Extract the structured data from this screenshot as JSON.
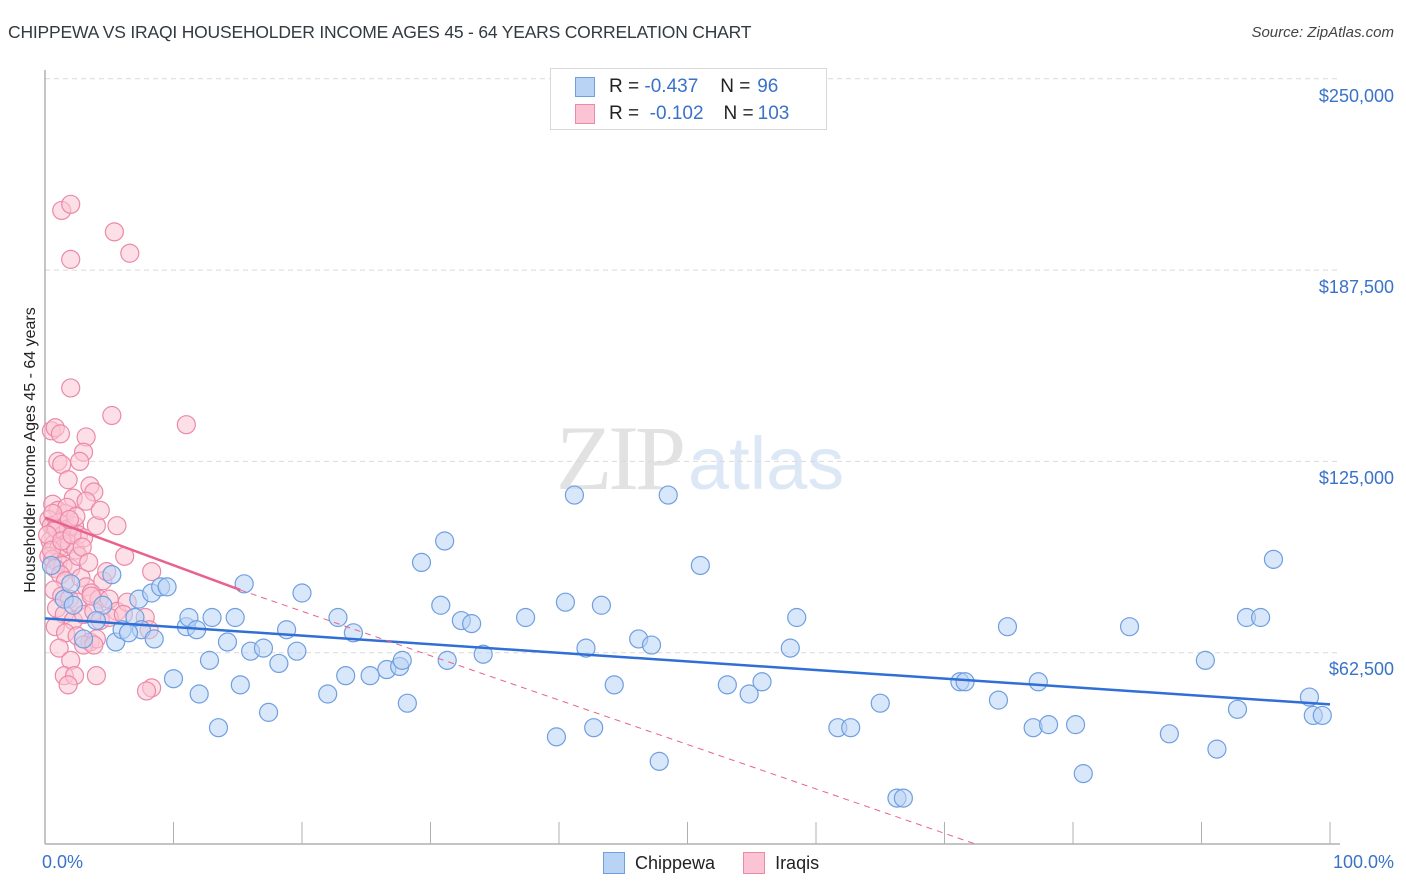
{
  "header": {
    "title": "CHIPPEWA VS IRAQI HOUSEHOLDER INCOME AGES 45 - 64 YEARS CORRELATION CHART",
    "source": "Source: ZipAtlas.com"
  },
  "watermark": {
    "zip": "ZIP",
    "atlas": "atlas"
  },
  "legend": {
    "series": [
      {
        "name": "Chippewa",
        "r_label": "R =",
        "r_value": "-0.437",
        "n_label": "N =",
        "n_value": "96",
        "fill": "#b9d3f5",
        "stroke": "#6f9fe0"
      },
      {
        "name": "Iraqis",
        "r_label": "R =",
        "r_value": "-0.102",
        "n_label": "N =",
        "n_value": "103",
        "fill": "#fbc4d4",
        "stroke": "#ea8aa8"
      }
    ]
  },
  "axes": {
    "ylabel": "Householder Income Ages 45 - 64 years",
    "y_ticks": [
      "$250,000",
      "$187,500",
      "$125,000",
      "$62,500"
    ],
    "x_ticks": [
      "0.0%",
      "100.0%"
    ]
  },
  "colors": {
    "blue_line": "#2f6fd6",
    "pink_line": "#e8628c",
    "axis_text": "#3a72c9",
    "grid": "#d9d9d9"
  },
  "chart_data": {
    "type": "scatter",
    "title": "CHIPPEWA VS IRAQI HOUSEHOLDER INCOME AGES 45 - 64 YEARS CORRELATION CHART",
    "xlabel": "",
    "ylabel": "Householder Income Ages 45 - 64 years",
    "xlim": [
      0,
      100
    ],
    "ylim": [
      0,
      255000
    ],
    "x_unit": "%",
    "y_ticks": [
      62500,
      125000,
      187500,
      250000
    ],
    "grid": true,
    "legend_position": "top-center and bottom-center",
    "series": [
      {
        "name": "Chippewa",
        "R": -0.437,
        "N": 96,
        "trend": {
          "x": [
            0,
            100
          ],
          "y": [
            73700,
            45600
          ]
        },
        "points": [
          [
            0.5,
            91000
          ],
          [
            1.5,
            80000
          ],
          [
            2.2,
            78000
          ],
          [
            3.0,
            67000
          ],
          [
            4.5,
            78000
          ],
          [
            5.2,
            88000
          ],
          [
            5.5,
            66000
          ],
          [
            6.0,
            70000
          ],
          [
            7.0,
            74000
          ],
          [
            7.3,
            80000
          ],
          [
            7.5,
            70000
          ],
          [
            8.3,
            82000
          ],
          [
            8.5,
            67000
          ],
          [
            9.0,
            84000
          ],
          [
            9.5,
            84000
          ],
          [
            10.0,
            54000
          ],
          [
            11.0,
            71000
          ],
          [
            11.2,
            74000
          ],
          [
            11.8,
            70000
          ],
          [
            12.0,
            49000
          ],
          [
            12.8,
            60000
          ],
          [
            13.0,
            74000
          ],
          [
            13.5,
            38000
          ],
          [
            14.2,
            66000
          ],
          [
            14.8,
            74000
          ],
          [
            15.2,
            52000
          ],
          [
            15.5,
            85000
          ],
          [
            16.0,
            63000
          ],
          [
            17.0,
            64000
          ],
          [
            17.4,
            43000
          ],
          [
            18.2,
            59000
          ],
          [
            18.8,
            70000
          ],
          [
            19.6,
            63000
          ],
          [
            20.0,
            82000
          ],
          [
            22.0,
            49000
          ],
          [
            22.8,
            74000
          ],
          [
            23.4,
            55000
          ],
          [
            24.0,
            69000
          ],
          [
            26.6,
            57000
          ],
          [
            27.6,
            58000
          ],
          [
            27.8,
            60000
          ],
          [
            28.2,
            46000
          ],
          [
            29.3,
            92000
          ],
          [
            30.8,
            78000
          ],
          [
            31.1,
            99000
          ],
          [
            31.3,
            60000
          ],
          [
            32.4,
            73000
          ],
          [
            33.2,
            72000
          ],
          [
            34.1,
            62000
          ],
          [
            37.4,
            74000
          ],
          [
            39.8,
            35000
          ],
          [
            40.5,
            79000
          ],
          [
            41.2,
            114000
          ],
          [
            42.1,
            64000
          ],
          [
            42.7,
            38000
          ],
          [
            43.3,
            78000
          ],
          [
            44.3,
            52000
          ],
          [
            46.2,
            67000
          ],
          [
            47.2,
            65000
          ],
          [
            47.8,
            27000
          ],
          [
            48.5,
            114000
          ],
          [
            51.0,
            91000
          ],
          [
            53.1,
            52000
          ],
          [
            54.8,
            49000
          ],
          [
            55.8,
            53000
          ],
          [
            58.0,
            64000
          ],
          [
            58.5,
            74000
          ],
          [
            61.7,
            38000
          ],
          [
            62.7,
            38000
          ],
          [
            65.0,
            46000
          ],
          [
            66.3,
            15000
          ],
          [
            66.8,
            15000
          ],
          [
            71.2,
            53000
          ],
          [
            71.6,
            53000
          ],
          [
            74.2,
            47000
          ],
          [
            74.9,
            71000
          ],
          [
            76.9,
            38000
          ],
          [
            77.3,
            53000
          ],
          [
            78.1,
            39000
          ],
          [
            80.2,
            39000
          ],
          [
            80.8,
            23000
          ],
          [
            84.4,
            71000
          ],
          [
            87.5,
            36000
          ],
          [
            90.3,
            60000
          ],
          [
            91.2,
            31000
          ],
          [
            92.8,
            44000
          ],
          [
            93.5,
            74000
          ],
          [
            94.6,
            74000
          ],
          [
            95.6,
            93000
          ],
          [
            98.4,
            48000
          ],
          [
            98.7,
            42000
          ],
          [
            99.4,
            42000
          ],
          [
            2.0,
            85000
          ],
          [
            4.0,
            73000
          ],
          [
            6.5,
            69000
          ],
          [
            25.3,
            55000
          ]
        ]
      },
      {
        "name": "Iraqis",
        "R": -0.102,
        "N": 103,
        "trend_solid": {
          "x": [
            0,
            15.2
          ],
          "y": [
            106600,
            83000
          ]
        },
        "trend_dashed": {
          "x": [
            15.2,
            72.4
          ],
          "y": [
            83000,
            0
          ]
        },
        "points": [
          [
            1.3,
            207000
          ],
          [
            2.0,
            209000
          ],
          [
            2.0,
            191000
          ],
          [
            5.4,
            200000
          ],
          [
            6.6,
            193000
          ],
          [
            2.0,
            149000
          ],
          [
            5.2,
            140000
          ],
          [
            11.0,
            137000
          ],
          [
            0.5,
            135000
          ],
          [
            0.8,
            136000
          ],
          [
            1.2,
            134000
          ],
          [
            3.2,
            133000
          ],
          [
            3.0,
            128000
          ],
          [
            1.0,
            125000
          ],
          [
            1.3,
            124000
          ],
          [
            2.7,
            125000
          ],
          [
            1.8,
            119000
          ],
          [
            3.5,
            117000
          ],
          [
            3.8,
            115000
          ],
          [
            0.6,
            111000
          ],
          [
            1.0,
            109000
          ],
          [
            1.6,
            108000
          ],
          [
            2.2,
            113000
          ],
          [
            3.2,
            112000
          ],
          [
            0.3,
            106000
          ],
          [
            0.5,
            104000
          ],
          [
            0.8,
            103000
          ],
          [
            1.1,
            105000
          ],
          [
            1.4,
            101000
          ],
          [
            1.8,
            103000
          ],
          [
            2.3,
            104000
          ],
          [
            2.6,
            101000
          ],
          [
            0.4,
            99000
          ],
          [
            0.7,
            98000
          ],
          [
            1.1,
            97000
          ],
          [
            1.5,
            97000
          ],
          [
            1.9,
            98000
          ],
          [
            2.4,
            96000
          ],
          [
            0.3,
            94000
          ],
          [
            0.6,
            93000
          ],
          [
            1.0,
            92000
          ],
          [
            1.4,
            91000
          ],
          [
            2.0,
            90000
          ],
          [
            2.6,
            94000
          ],
          [
            3.0,
            100000
          ],
          [
            4.0,
            104000
          ],
          [
            4.3,
            109000
          ],
          [
            5.6,
            104000
          ],
          [
            6.2,
            94000
          ],
          [
            0.8,
            90000
          ],
          [
            1.2,
            88000
          ],
          [
            1.6,
            86000
          ],
          [
            2.8,
            87000
          ],
          [
            3.2,
            84000
          ],
          [
            4.5,
            86000
          ],
          [
            4.8,
            89000
          ],
          [
            8.3,
            89000
          ],
          [
            0.7,
            83000
          ],
          [
            1.3,
            81000
          ],
          [
            1.9,
            80000
          ],
          [
            2.5,
            79000
          ],
          [
            3.6,
            82000
          ],
          [
            4.2,
            80000
          ],
          [
            5.0,
            80000
          ],
          [
            5.6,
            76000
          ],
          [
            6.4,
            79000
          ],
          [
            0.9,
            77000
          ],
          [
            1.5,
            75000
          ],
          [
            2.2,
            73000
          ],
          [
            3.0,
            75000
          ],
          [
            3.8,
            76000
          ],
          [
            4.3,
            73000
          ],
          [
            5.0,
            74000
          ],
          [
            6.1,
            75000
          ],
          [
            7.8,
            74000
          ],
          [
            8.1,
            70000
          ],
          [
            0.8,
            71000
          ],
          [
            1.6,
            69000
          ],
          [
            2.5,
            68000
          ],
          [
            3.5,
            66000
          ],
          [
            4.0,
            67000
          ],
          [
            1.1,
            64000
          ],
          [
            2.0,
            60000
          ],
          [
            3.0,
            65000
          ],
          [
            3.8,
            65000
          ],
          [
            1.5,
            55000
          ],
          [
            2.3,
            55000
          ],
          [
            4.0,
            55000
          ],
          [
            1.8,
            52000
          ],
          [
            8.3,
            51000
          ],
          [
            7.9,
            50000
          ],
          [
            0.9,
            103000
          ],
          [
            1.7,
            110000
          ],
          [
            2.4,
            107000
          ],
          [
            0.2,
            101000
          ],
          [
            0.5,
            96000
          ],
          [
            1.3,
            99000
          ],
          [
            2.1,
            101000
          ],
          [
            2.9,
            97000
          ],
          [
            0.6,
            108000
          ],
          [
            1.9,
            106000
          ],
          [
            3.4,
            92000
          ],
          [
            3.6,
            81000
          ]
        ]
      }
    ]
  }
}
